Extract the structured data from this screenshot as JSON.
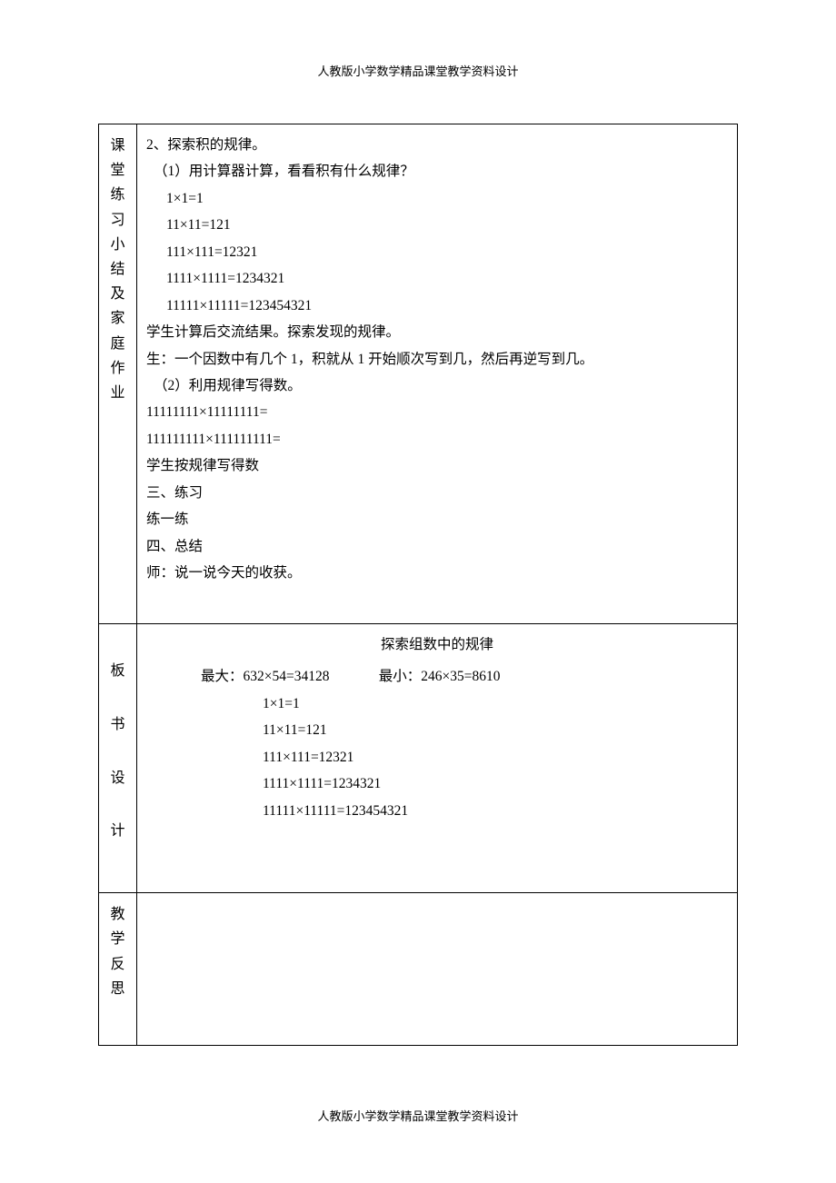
{
  "header": "人教版小学数学精品课堂教学资料设计",
  "footer": "人教版小学数学精品课堂教学资料设计",
  "rows": {
    "practice": {
      "label": "课堂练习小结及家庭作业",
      "lines": [
        {
          "text": "2、探索积的规律。",
          "cls": "indent-1"
        },
        {
          "text": "（1）用计算器计算，看看积有什么规律？",
          "cls": "indent-2"
        },
        {
          "text": "1×1=1",
          "cls": "indent-3"
        },
        {
          "text": "11×11=121",
          "cls": "indent-3"
        },
        {
          "text": "111×111=12321",
          "cls": "indent-3"
        },
        {
          "text": "1111×1111=1234321",
          "cls": "indent-3"
        },
        {
          "text": "11111×11111=123454321",
          "cls": "indent-3"
        },
        {
          "text": "学生计算后交流结果。探索发现的规律。",
          "cls": "indent-1"
        },
        {
          "text": "生：一个因数中有几个 1，积就从 1 开始顺次写到几，然后再逆写到几。",
          "cls": "indent-1"
        },
        {
          "text": "（2）利用规律写得数。",
          "cls": "indent-2"
        },
        {
          "text": "11111111×11111111=",
          "cls": "indent-1"
        },
        {
          "text": "111111111×111111111=",
          "cls": "indent-1"
        },
        {
          "text": "学生按规律写得数",
          "cls": "indent-1"
        },
        {
          "text": "三、练习",
          "cls": "indent-1"
        },
        {
          "text": "练一练",
          "cls": "indent-1"
        },
        {
          "text": "四、总结",
          "cls": "indent-1"
        },
        {
          "text": " 师：说一说今天的收获。",
          "cls": "indent-1"
        }
      ]
    },
    "board": {
      "label": [
        "板",
        "书",
        "设",
        "计"
      ],
      "title": "探索组数中的规律",
      "minmax": "最大：632×54=34128              最小：246×35=8610",
      "calcs": [
        "1×1=1",
        "11×11=121",
        "111×111=12321",
        "1111×1111=1234321",
        "11111×11111=123454321"
      ]
    },
    "reflect": {
      "label": "教学反思"
    }
  }
}
